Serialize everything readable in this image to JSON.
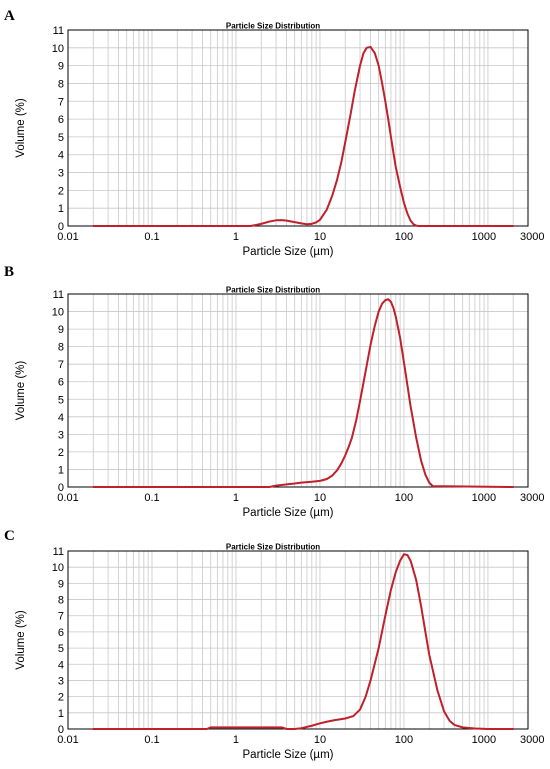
{
  "colors": {
    "series": "#c0202a",
    "grid": "#c8c8c8",
    "frame": "#000000"
  },
  "chart_data": [
    {
      "type": "line",
      "panel_label": "A",
      "title": "Particle Size Distribution",
      "xlabel": "Particle Size (µm)",
      "ylabel": "Volume (%)",
      "x_scale": "log",
      "xlim": [
        0.01,
        3000
      ],
      "ylim": [
        0,
        11
      ],
      "x_tick_labels": [
        "0.01",
        "0.1",
        "1",
        "10",
        "100",
        "1000",
        "3000"
      ],
      "y_tick_labels": [
        "0",
        "1",
        "2",
        "3",
        "4",
        "5",
        "6",
        "7",
        "8",
        "9",
        "10",
        "11"
      ],
      "grid": true,
      "series": [
        {
          "x": [
            0.02,
            1.5,
            2.0,
            2.5,
            3.0,
            3.5,
            4.0,
            5.0,
            6.0,
            7.0,
            8.0,
            9.0,
            10,
            12,
            14,
            16,
            18,
            20,
            23,
            26,
            30,
            33,
            36,
            40,
            45,
            50,
            55,
            60,
            65,
            70,
            75,
            80,
            90,
            100,
            110,
            120,
            130,
            140,
            150,
            160,
            2000
          ],
          "y": [
            0,
            0,
            0.12,
            0.25,
            0.32,
            0.33,
            0.3,
            0.22,
            0.15,
            0.1,
            0.12,
            0.2,
            0.35,
            0.9,
            1.7,
            2.6,
            3.6,
            4.7,
            6.2,
            7.6,
            9.0,
            9.7,
            10.0,
            10.05,
            9.7,
            9.0,
            8.0,
            7.0,
            6.0,
            5.0,
            4.1,
            3.3,
            2.2,
            1.3,
            0.7,
            0.3,
            0.1,
            0.02,
            0,
            0,
            0
          ]
        }
      ]
    },
    {
      "type": "line",
      "panel_label": "B",
      "title": "Particle Size Distribution",
      "xlabel": "Particle Size (µm)",
      "ylabel": "Volume (%)",
      "x_scale": "log",
      "xlim": [
        0.01,
        3000
      ],
      "ylim": [
        0,
        11
      ],
      "x_tick_labels": [
        "0.01",
        "0.1",
        "1",
        "10",
        "100",
        "1000",
        "3000"
      ],
      "y_tick_labels": [
        "0",
        "1",
        "2",
        "3",
        "4",
        "5",
        "6",
        "7",
        "8",
        "9",
        "10",
        "11"
      ],
      "grid": true,
      "series": [
        {
          "x": [
            0.02,
            2.5,
            3.0,
            4.0,
            5.0,
            6.0,
            8.0,
            10,
            12,
            14,
            16,
            18,
            20,
            22,
            24,
            27,
            30,
            35,
            40,
            45,
            50,
            55,
            60,
            65,
            70,
            75,
            80,
            90,
            100,
            110,
            120,
            140,
            160,
            180,
            200,
            220,
            2000
          ],
          "y": [
            0,
            0,
            0.08,
            0.15,
            0.2,
            0.25,
            0.3,
            0.35,
            0.45,
            0.65,
            0.95,
            1.35,
            1.8,
            2.3,
            2.8,
            3.8,
            4.9,
            6.6,
            8.1,
            9.2,
            10.0,
            10.45,
            10.65,
            10.7,
            10.55,
            10.2,
            9.7,
            8.5,
            7.1,
            5.8,
            4.6,
            2.8,
            1.5,
            0.7,
            0.25,
            0.05,
            0
          ]
        }
      ]
    },
    {
      "type": "line",
      "panel_label": "C",
      "title": "Particle Size Distribution",
      "xlabel": "Particle Size (µm)",
      "ylabel": "Volume (%)",
      "x_scale": "log",
      "xlim": [
        0.01,
        3000
      ],
      "ylim": [
        0,
        11
      ],
      "x_tick_labels": [
        "0.01",
        "0.1",
        "1",
        "10",
        "100",
        "1000",
        "3000"
      ],
      "y_tick_labels": [
        "0",
        "1",
        "2",
        "3",
        "4",
        "5",
        "6",
        "7",
        "8",
        "9",
        "10",
        "11"
      ],
      "grid": true,
      "series": [
        {
          "x": [
            0.02,
            0.45,
            0.5,
            1.0,
            2.0,
            3.0,
            3.5,
            4.0,
            5.0,
            6.0,
            8.0,
            10,
            12,
            15,
            20,
            25,
            30,
            35,
            40,
            50,
            60,
            70,
            80,
            90,
            100,
            110,
            120,
            140,
            160,
            180,
            200,
            250,
            300,
            350,
            400,
            500,
            700,
            1000,
            2000
          ],
          "y": [
            0,
            0,
            0.1,
            0.1,
            0.1,
            0.1,
            0.1,
            0,
            0,
            0.05,
            0.2,
            0.35,
            0.45,
            0.55,
            0.65,
            0.8,
            1.2,
            2.0,
            3.0,
            5.0,
            7.0,
            8.6,
            9.7,
            10.4,
            10.8,
            10.75,
            10.4,
            9.2,
            7.6,
            6.0,
            4.6,
            2.4,
            1.1,
            0.5,
            0.25,
            0.1,
            0.03,
            0,
            0
          ]
        }
      ]
    }
  ]
}
